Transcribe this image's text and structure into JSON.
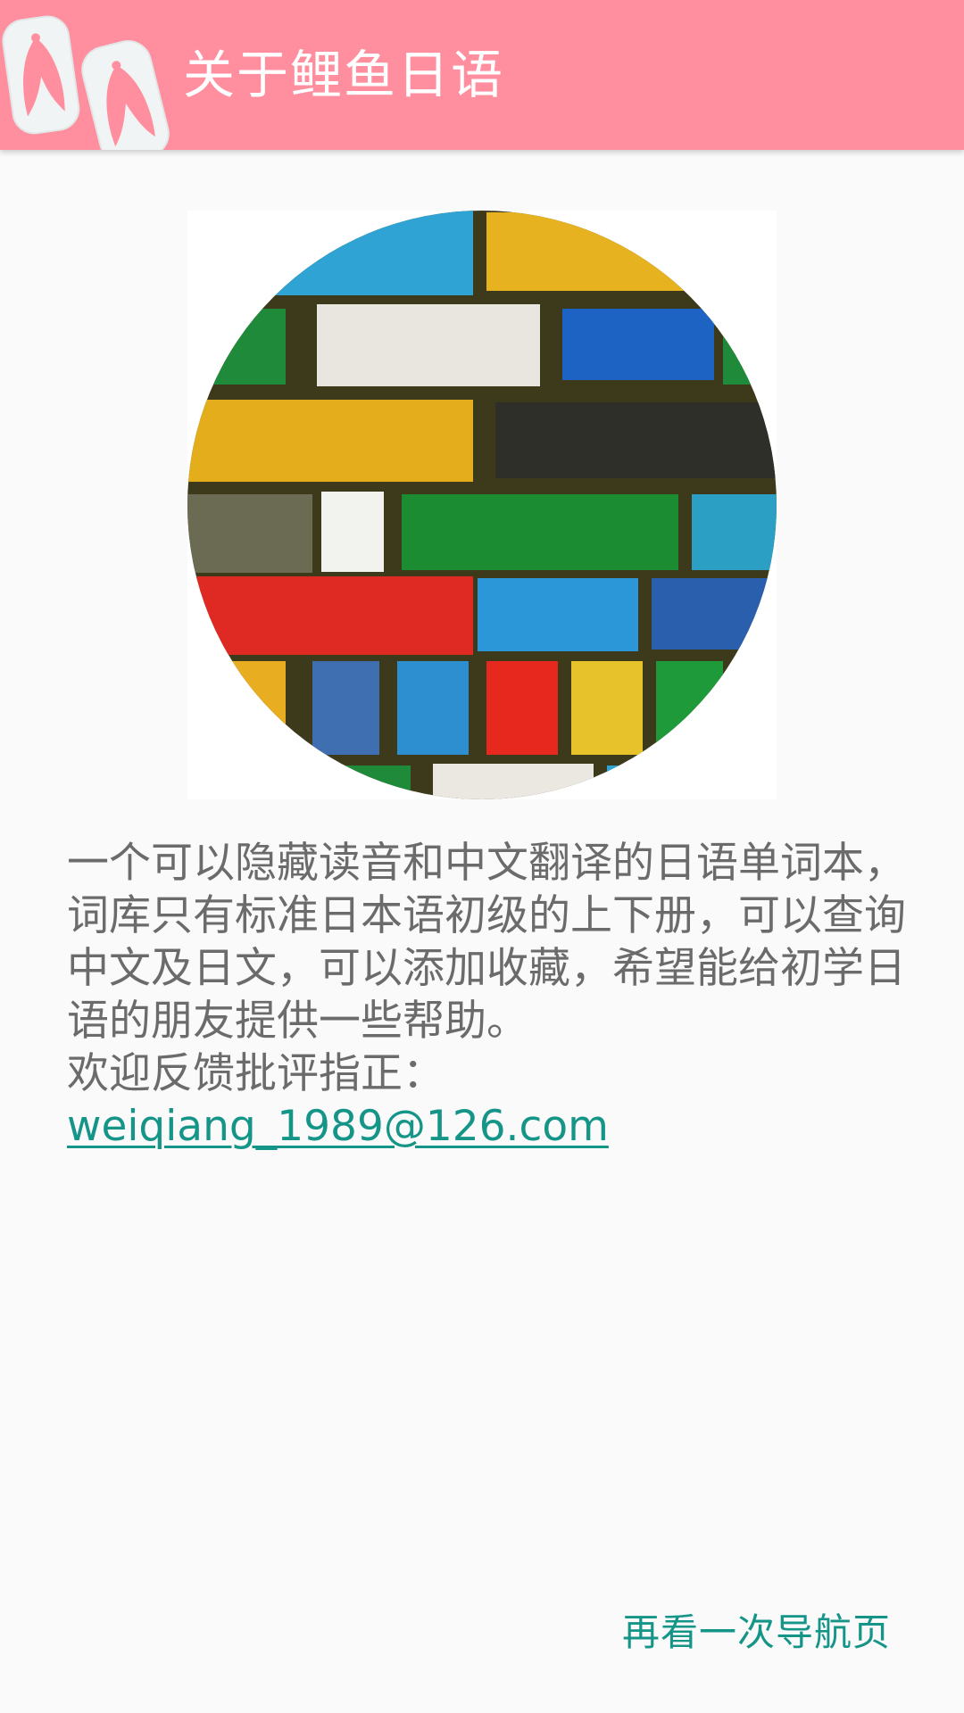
{
  "app_bar": {
    "title": "关于鲤鱼日语",
    "logo_icon": "geta-sandals-icon",
    "background_color": "#ff8f9f"
  },
  "hero_image": {
    "icon": "colorful-brick-wall-image"
  },
  "description": {
    "text": "一个可以隐藏读音和中文翻译的日语单词本，词库只有标准日本语初级的上下册，可以查询中文及日文，可以添加收藏，希望能给初学日语的朋友提供一些帮助。",
    "feedback_prompt": "欢迎反馈批评指正：",
    "email": "weiqiang_1989@126.com"
  },
  "footer": {
    "nav_button_label": "再看一次导航页",
    "accent_color": "#159488"
  }
}
